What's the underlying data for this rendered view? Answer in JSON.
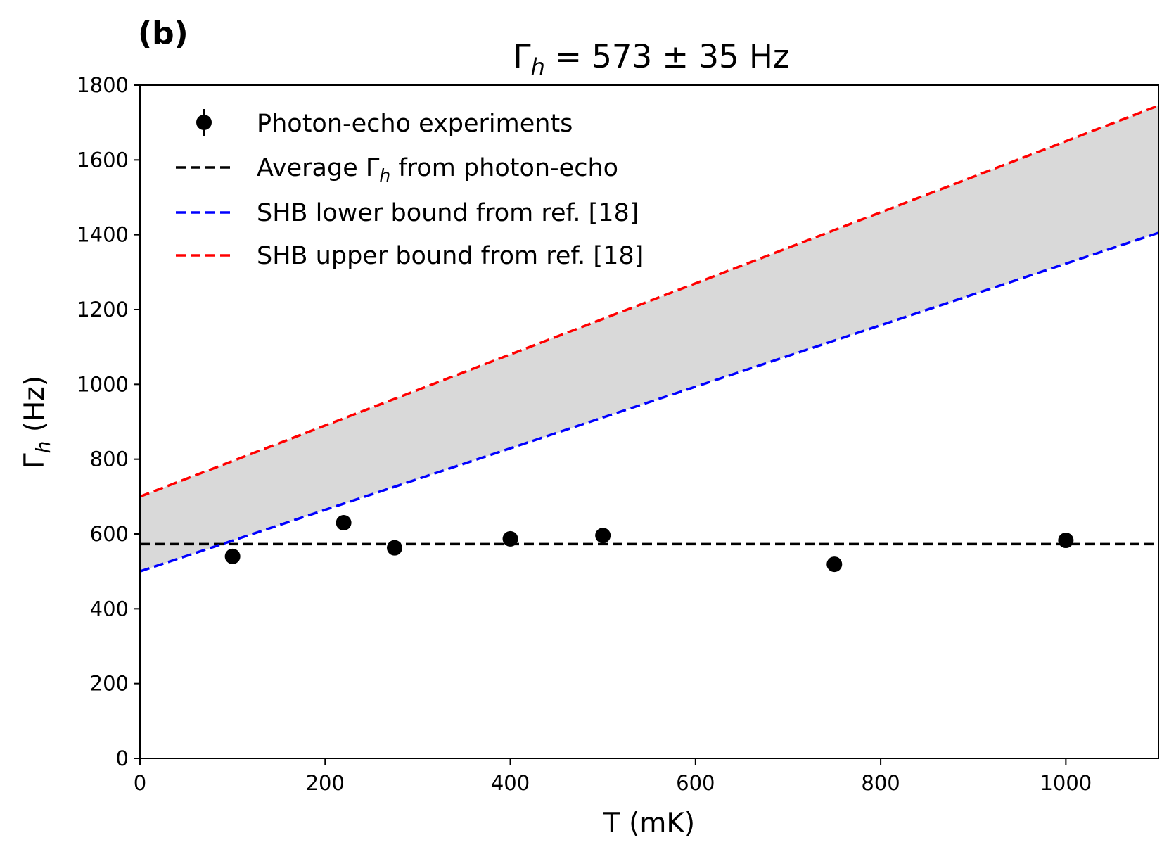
{
  "panel_label": "(b)",
  "colors": {
    "points": "#000000",
    "average_line": "#000000",
    "lower_bound": "#0000ff",
    "upper_bound": "#ff0000",
    "band_fill": "#d9d9d9",
    "axes": "#000000"
  },
  "chart_data": {
    "type": "scatter",
    "title": "Γh = 573 ± 35 Hz",
    "title_parts": {
      "symbol": "Γ",
      "sub": "h",
      "rest": " = 573 ± 35 Hz"
    },
    "xlabel": "T (mK)",
    "ylabel": "Γh (Hz)",
    "ylabel_parts": {
      "symbol": "Γ",
      "sub": "h",
      "rest": " (Hz)"
    },
    "xlim": [
      0,
      1100
    ],
    "ylim": [
      0,
      1800
    ],
    "xticks": [
      0,
      200,
      400,
      600,
      800,
      1000
    ],
    "yticks": [
      0,
      200,
      400,
      600,
      800,
      1000,
      1200,
      1400,
      1600,
      1800
    ],
    "xtick_labels": [
      "0",
      "200",
      "400",
      "600",
      "800",
      "1000"
    ],
    "ytick_labels": [
      "0",
      "200",
      "400",
      "600",
      "800",
      "1000",
      "1200",
      "1400",
      "1600",
      "1800"
    ],
    "grid": false,
    "legend_position": "upper-left",
    "series": [
      {
        "name": "Photon-echo experiments",
        "kind": "points",
        "x": [
          100,
          220,
          275,
          400,
          500,
          750,
          1000
        ],
        "y": [
          540,
          630,
          563,
          587,
          596,
          519,
          583
        ]
      },
      {
        "name": "Average Γh from photon-echo",
        "legend_parts": {
          "before": "Average ",
          "symbol": "Γ",
          "sub": "h",
          "after": " from photon-echo"
        },
        "kind": "hline",
        "y": 573
      },
      {
        "name": "SHB lower bound from ref. [18]",
        "kind": "line",
        "x": [
          0,
          1100
        ],
        "y": [
          500,
          1405
        ]
      },
      {
        "name": "SHB upper bound from ref. [18]",
        "kind": "line",
        "x": [
          0,
          1100
        ],
        "y": [
          700,
          1745
        ]
      }
    ],
    "shaded_band": {
      "between": [
        "SHB lower bound from ref. [18]",
        "SHB upper bound from ref. [18]"
      ]
    }
  }
}
